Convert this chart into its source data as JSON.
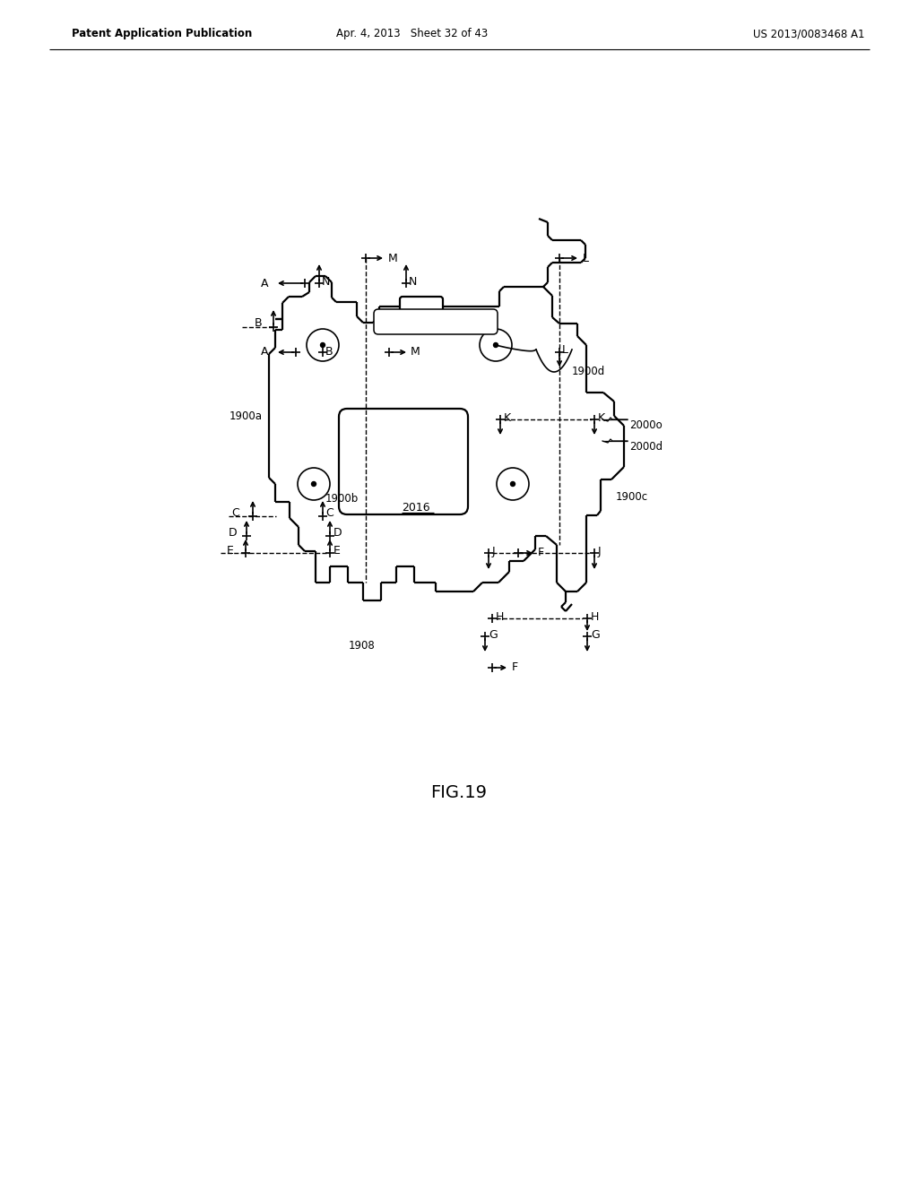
{
  "bg_color": "#ffffff",
  "line_color": "#000000",
  "header_left": "Patent Application Publication",
  "header_mid": "Apr. 4, 2013   Sheet 32 of 43",
  "header_right": "US 2013/0083468 A1",
  "fig_label": "FIG.19",
  "lw_main": 1.6,
  "lw_dim": 1.2,
  "lw_dash": 1.0,
  "fs_label": 9,
  "fs_small": 8.5,
  "fs_fig": 14
}
